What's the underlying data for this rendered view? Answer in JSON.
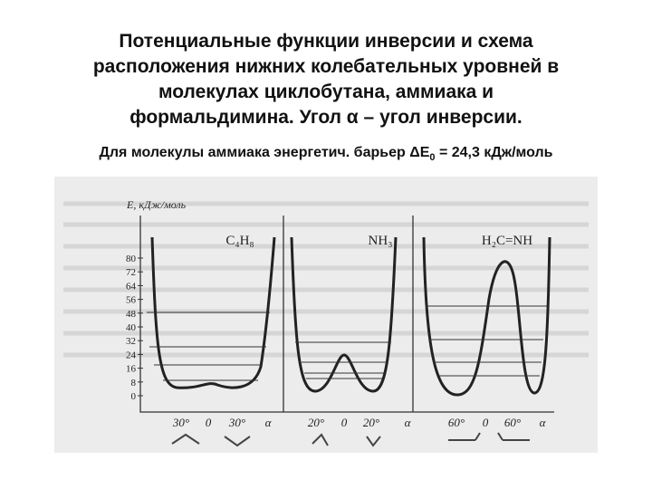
{
  "header": {
    "title_lines": [
      "Потенциальные функции инверсии и схема",
      "расположения нижних колебательных уровней в",
      "молекулах циклобутана, аммиака и",
      "формальдимина. Угол α – угол инверсии."
    ],
    "subtitle": {
      "text": "Для молекулы аммиака энергетич. барьер ΔE",
      "subscript": "0",
      "tail": "= 24,3 кДж/моль"
    }
  },
  "figure": {
    "y_axis_label": "E, кДж/моль",
    "y_ticks": [
      80,
      72,
      64,
      56,
      48,
      40,
      32,
      24,
      16,
      8,
      0
    ],
    "panels": [
      {
        "formula": "C₄H₈",
        "x_labels": [
          "30°",
          "0",
          "30°",
          "α"
        ]
      },
      {
        "formula": "NH₃",
        "x_labels": [
          "20°",
          "0",
          "20°",
          "α"
        ]
      },
      {
        "formula": "H₂C=NH",
        "x_labels": [
          "60°",
          "0",
          "60°",
          "α"
        ]
      }
    ]
  }
}
